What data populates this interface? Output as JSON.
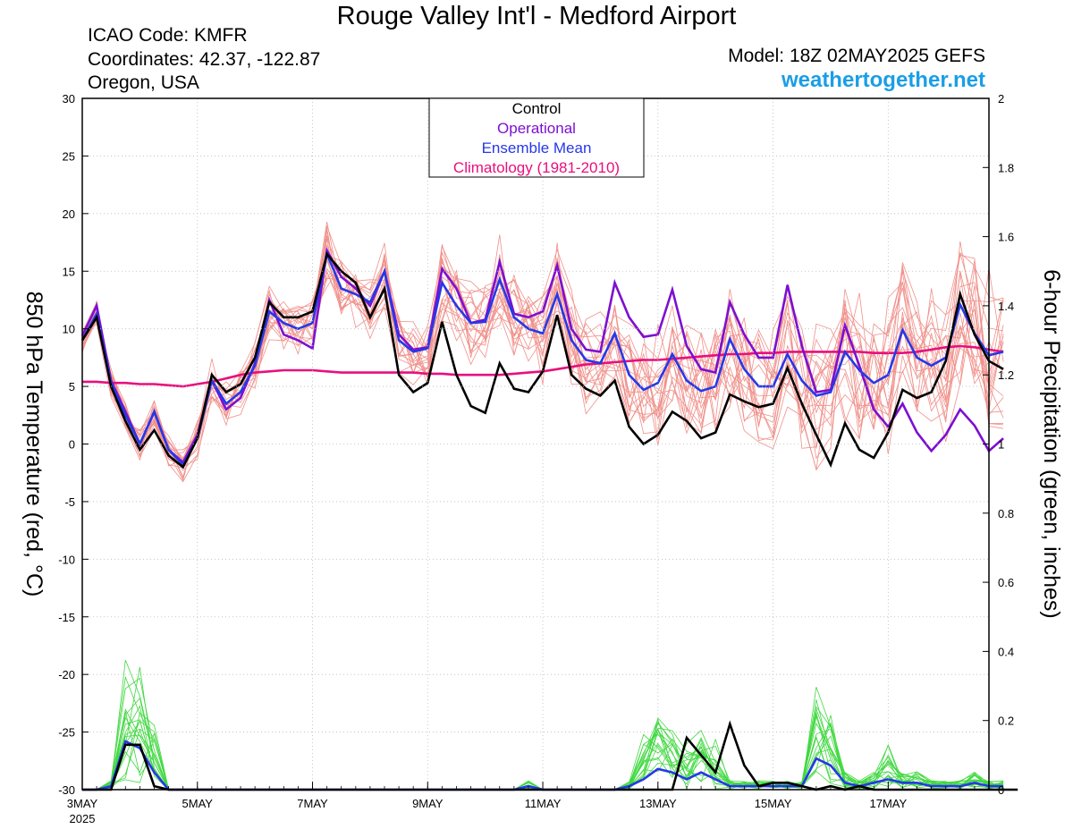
{
  "header": {
    "title": "Rouge Valley Int'l - Medford Airport",
    "icao": "ICAO Code: KMFR",
    "coordinates": "Coordinates: 42.37, -122.87",
    "location": "Oregon, USA",
    "model": "Model: 18Z 02MAY2025 GEFS",
    "site": "weathertogether.net"
  },
  "chart_data": {
    "type": "line",
    "x_unit": "6-hour steps from 00Z 3 May 2025",
    "x_range": [
      0,
      63
    ],
    "x_ticks": [
      {
        "x": 0,
        "label": "3MAY",
        "sublabel": "2025"
      },
      {
        "x": 8,
        "label": "5MAY"
      },
      {
        "x": 16,
        "label": "7MAY"
      },
      {
        "x": 24,
        "label": "9MAY"
      },
      {
        "x": 32,
        "label": "11MAY"
      },
      {
        "x": 40,
        "label": "13MAY"
      },
      {
        "x": 48,
        "label": "15MAY"
      },
      {
        "x": 56,
        "label": "17MAY"
      }
    ],
    "y_left": {
      "label": "850 hPa Temperature (red, °C)",
      "range": [
        -30,
        30
      ],
      "ticks": [
        30,
        25,
        20,
        15,
        10,
        5,
        0,
        -5,
        -10,
        -15,
        -20,
        -25,
        -30
      ]
    },
    "y_right": {
      "label": "6-hour Precipitation (green, inches)",
      "range": [
        0,
        2
      ],
      "ticks": [
        2,
        1.8,
        1.6,
        1.4,
        1.2,
        1,
        0.8,
        0.6,
        0.4,
        0.2,
        0
      ]
    },
    "legend": [
      "Control",
      "Operational",
      "Ensemble Mean",
      "Climatology (1981-2010)"
    ],
    "legend_position": "top-center",
    "colors": {
      "control": "#000000",
      "operational": "#7d0fd1",
      "mean": "#2638e8",
      "climatology": "#e80f7e",
      "members_temp": "#f0908a",
      "members_precip": "#40d840"
    },
    "temperature": {
      "control": [
        9,
        11,
        5,
        2,
        -0.5,
        1.2,
        -1,
        -2,
        0.5,
        6,
        4.5,
        5.2,
        7.5,
        12.3,
        11,
        11,
        11.5,
        16.5,
        15,
        14,
        11,
        13.5,
        6,
        4.5,
        5.3,
        10.6,
        6,
        3.3,
        2.7,
        7,
        4.8,
        4.5,
        6.3,
        11.2,
        6,
        4.8,
        4.2,
        5.5,
        1.5,
        0,
        0.8,
        2.8,
        2,
        0.5,
        1,
        4.3,
        3.7,
        3.2,
        3.5,
        6.6,
        3.5,
        0.8,
        -1.8,
        1.8,
        -0.5,
        -1.2,
        1,
        4.7,
        4,
        4.5,
        7.2,
        13,
        9.5,
        7.2,
        6.5
      ],
      "operational": [
        9.4,
        12,
        5.5,
        2.8,
        0,
        2.8,
        -0.5,
        -1.6,
        0.8,
        5.5,
        3,
        4,
        7,
        12.5,
        9.5,
        9,
        8.3,
        16.8,
        14.5,
        13.5,
        12,
        15,
        9.5,
        8.2,
        8.4,
        15.2,
        13.5,
        10.5,
        10.8,
        15.8,
        11.3,
        11,
        11.5,
        15.5,
        10,
        8.2,
        8,
        14,
        11,
        9.3,
        9.5,
        13.4,
        8.5,
        6.5,
        6.2,
        12.3,
        9.5,
        7.5,
        7.5,
        13.8,
        8.5,
        4.5,
        4.7,
        10.3,
        6.8,
        3,
        1.5,
        3.5,
        1,
        -0.6,
        0.8,
        3,
        1.6,
        -0.6,
        0.5
      ],
      "mean": [
        9,
        11.3,
        5.3,
        2.5,
        0,
        2.8,
        -0.5,
        -1.8,
        0.5,
        5.5,
        3.5,
        4.5,
        6.8,
        11.5,
        10.5,
        10,
        10.5,
        16.5,
        13.5,
        13,
        12.3,
        15,
        9,
        8,
        8.3,
        14,
        12,
        10.5,
        10.6,
        14.3,
        11,
        10,
        9.6,
        13,
        9,
        7.3,
        7,
        9.6,
        6,
        4.7,
        5.3,
        7.8,
        5.5,
        4.6,
        5,
        9.1,
        6.5,
        5,
        5,
        7.8,
        5.5,
        4.2,
        4.5,
        8,
        6.4,
        5.3,
        6,
        9.9,
        7.5,
        6.8,
        7.5,
        12.1,
        9.6,
        7.7,
        8
      ],
      "climatology": [
        5.4,
        5.4,
        5.3,
        5.3,
        5.2,
        5.2,
        5.1,
        5.0,
        5.2,
        5.4,
        5.7,
        6.0,
        6.2,
        6.3,
        6.4,
        6.4,
        6.4,
        6.3,
        6.2,
        6.2,
        6.2,
        6.2,
        6.2,
        6.2,
        6.1,
        6.1,
        6.0,
        6.0,
        6.0,
        6.0,
        6.1,
        6.2,
        6.3,
        6.5,
        6.7,
        6.9,
        7.0,
        7.1,
        7.2,
        7.3,
        7.3,
        7.4,
        7.5,
        7.6,
        7.7,
        7.8,
        7.8,
        7.9,
        7.9,
        8.0,
        8.0,
        8.0,
        8.0,
        8.0,
        8.0,
        7.9,
        7.9,
        7.9,
        8.0,
        8.2,
        8.4,
        8.5,
        8.4,
        8.2,
        8.0
      ]
    },
    "precipitation": {
      "control": [
        0,
        0,
        0,
        0.13,
        0.13,
        0.01,
        0,
        0,
        0,
        0,
        0,
        0,
        0,
        0,
        0,
        0,
        0,
        0,
        0,
        0,
        0,
        0,
        0,
        0,
        0,
        0,
        0,
        0,
        0,
        0,
        0,
        0,
        0,
        0,
        0,
        0,
        0,
        0,
        0,
        0,
        0,
        0,
        0.15,
        0.1,
        0.05,
        0.19,
        0.07,
        0.01,
        0.02,
        0.02,
        0.01,
        0,
        0.01,
        0,
        0.01,
        0,
        0,
        0,
        0,
        0,
        0,
        0,
        0,
        0,
        0,
        0
      ],
      "operational": [
        0,
        0,
        0,
        0.13,
        0.12,
        0,
        0,
        0,
        0,
        0,
        0,
        0,
        0,
        0,
        0,
        0,
        0,
        0,
        0,
        0,
        0,
        0,
        0,
        0,
        0,
        0,
        0,
        0,
        0,
        0,
        0,
        0,
        0,
        0,
        0,
        0,
        0,
        0,
        0,
        0,
        0,
        0,
        0,
        0.03,
        0.05,
        0.04,
        0.02,
        0.04,
        0.01,
        0,
        0.01,
        0.01,
        0.01,
        0.09,
        0.04,
        0,
        0.02,
        0.01,
        0.01,
        0.02,
        0,
        0,
        0,
        0,
        0,
        0,
        0
      ],
      "mean": [
        0,
        0,
        0.01,
        0.14,
        0.12,
        0.05,
        0,
        0,
        0,
        0,
        0,
        0,
        0,
        0,
        0,
        0,
        0,
        0,
        0,
        0,
        0,
        0,
        0,
        0,
        0,
        0,
        0,
        0,
        0,
        0,
        0,
        0.01,
        0,
        0,
        0,
        0,
        0,
        0,
        0.01,
        0.03,
        0.06,
        0.05,
        0.03,
        0.05,
        0.03,
        0.01,
        0.01,
        0.01,
        0.01,
        0.01,
        0.01,
        0.09,
        0.07,
        0.02,
        0.01,
        0.02,
        0.03,
        0.02,
        0.02,
        0.01,
        0.01,
        0.01,
        0.02,
        0.01,
        0.01
      ]
    }
  }
}
